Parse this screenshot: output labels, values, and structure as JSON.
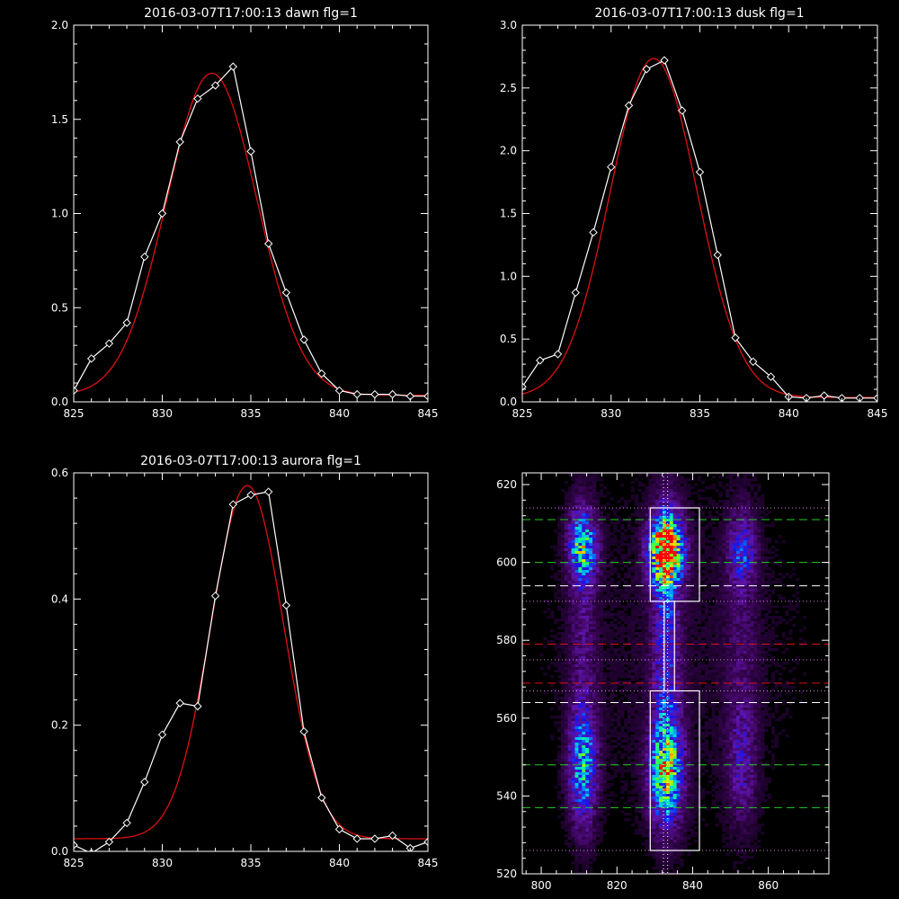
{
  "chart_data": [
    {
      "type": "line",
      "title": "2016-03-07T17:00:13 dawn flg=1",
      "xlim": [
        825,
        845
      ],
      "ylim": [
        0,
        2.0
      ],
      "xticks": [
        825,
        830,
        835,
        840,
        845
      ],
      "xtick_labels": [
        "825",
        "830",
        "835",
        "840",
        "845"
      ],
      "yticks": [
        0,
        0.5,
        1.0,
        1.5,
        2.0
      ],
      "ytick_labels": [
        "0.0",
        "0.5",
        "1.0",
        "1.5",
        "2.0"
      ],
      "series": [
        {
          "kind": "data",
          "color": "#ffffff",
          "marker": "diamond",
          "x": [
            825,
            826,
            827,
            828,
            829,
            830,
            831,
            832,
            833,
            834,
            835,
            836,
            837,
            838,
            839,
            840,
            841,
            842,
            843,
            844,
            845
          ],
          "y": [
            0.06,
            0.23,
            0.31,
            0.42,
            0.77,
            1.0,
            1.38,
            1.61,
            1.68,
            1.78,
            1.33,
            0.84,
            0.58,
            0.33,
            0.15,
            0.06,
            0.04,
            0.04,
            0.04,
            0.03,
            0.03
          ]
        },
        {
          "kind": "fit",
          "color": "#e01010",
          "model": "gaussian",
          "amp": 1.71,
          "center": 832.8,
          "sigma": 2.55,
          "base": 0.035
        }
      ]
    },
    {
      "type": "line",
      "title": "2016-03-07T17:00:13 dusk flg=1",
      "xlim": [
        825,
        845
      ],
      "ylim": [
        0,
        3.0
      ],
      "xticks": [
        825,
        830,
        835,
        840,
        845
      ],
      "xtick_labels": [
        "825",
        "830",
        "835",
        "840",
        "845"
      ],
      "yticks": [
        0,
        0.5,
        1.0,
        1.5,
        2.0,
        2.5,
        3.0
      ],
      "ytick_labels": [
        "0.0",
        "0.5",
        "1.0",
        "1.5",
        "2.0",
        "2.5",
        "3.0"
      ],
      "series": [
        {
          "kind": "data",
          "color": "#ffffff",
          "marker": "diamond",
          "x": [
            825,
            826,
            827,
            828,
            829,
            830,
            831,
            832,
            833,
            834,
            835,
            836,
            837,
            838,
            839,
            840,
            841,
            842,
            843,
            844,
            845
          ],
          "y": [
            0.12,
            0.33,
            0.38,
            0.87,
            1.35,
            1.87,
            2.36,
            2.65,
            2.72,
            2.32,
            1.83,
            1.17,
            0.51,
            0.32,
            0.2,
            0.04,
            0.03,
            0.05,
            0.03,
            0.03,
            0.03
          ]
        },
        {
          "kind": "fit",
          "color": "#e01010",
          "model": "gaussian",
          "amp": 2.7,
          "center": 832.4,
          "sigma": 2.45,
          "base": 0.035
        }
      ]
    },
    {
      "type": "line",
      "title": "2016-03-07T17:00:13 aurora flg=1",
      "xlim": [
        825,
        845
      ],
      "ylim": [
        0,
        0.6
      ],
      "xticks": [
        825,
        830,
        835,
        840,
        845
      ],
      "xtick_labels": [
        "825",
        "830",
        "835",
        "840",
        "845"
      ],
      "yticks": [
        0,
        0.2,
        0.4,
        0.6
      ],
      "ytick_labels": [
        "0.0",
        "0.2",
        "0.4",
        "0.6"
      ],
      "series": [
        {
          "kind": "data",
          "color": "#ffffff",
          "marker": "diamond",
          "x": [
            825,
            826,
            827,
            828,
            829,
            830,
            831,
            832,
            833,
            834,
            835,
            836,
            837,
            838,
            839,
            840,
            841,
            842,
            843,
            844,
            845
          ],
          "y": [
            0.01,
            -0.003,
            0.015,
            0.045,
            0.11,
            0.185,
            0.235,
            0.23,
            0.405,
            0.55,
            0.565,
            0.57,
            0.39,
            0.19,
            0.085,
            0.035,
            0.02,
            0.02,
            0.025,
            0.005,
            0.015
          ]
        },
        {
          "kind": "fit",
          "color": "#e01010",
          "model": "gaussian",
          "amp": 0.56,
          "center": 834.8,
          "sigma": 2.05,
          "base": 0.02
        }
      ]
    },
    {
      "type": "heatmap",
      "title": "",
      "xlim": [
        795,
        876
      ],
      "ylim": [
        520,
        623
      ],
      "xticks": [
        800,
        820,
        840,
        860
      ],
      "xtick_labels": [
        "800",
        "820",
        "840",
        "860"
      ],
      "yticks": [
        520,
        540,
        560,
        580,
        600,
        620
      ],
      "ytick_labels": [
        "520",
        "540",
        "560",
        "580",
        "600",
        "620"
      ],
      "colormap": "rainbow",
      "blobs": [
        {
          "x": 811,
          "y": 604,
          "sx": 2.5,
          "sy": 6,
          "amp": 0.55
        },
        {
          "x": 811,
          "y": 547,
          "sx": 2.5,
          "sy": 10,
          "amp": 0.45
        },
        {
          "x": 811,
          "y": 580,
          "sx": 2.5,
          "sy": 25,
          "amp": 0.14
        },
        {
          "x": 833,
          "y": 603,
          "sx": 3,
          "sy": 6,
          "amp": 1.0
        },
        {
          "x": 833,
          "y": 546,
          "sx": 3,
          "sy": 9,
          "amp": 0.62
        },
        {
          "x": 833,
          "y": 578,
          "sx": 2.5,
          "sy": 24,
          "amp": 0.3
        },
        {
          "x": 853,
          "y": 603,
          "sx": 2.5,
          "sy": 6,
          "amp": 0.28
        },
        {
          "x": 853,
          "y": 548,
          "sx": 2.5,
          "sy": 10,
          "amp": 0.18
        },
        {
          "x": 853,
          "y": 578,
          "sx": 3,
          "sy": 26,
          "amp": 0.1
        },
        {
          "x": 835,
          "y": 578,
          "sx": 30,
          "sy": 40,
          "amp": 0.05
        }
      ],
      "boxes": [
        {
          "color": "#ffffff",
          "x": [
            828.8,
            841.8
          ],
          "y": [
            590,
            614
          ]
        },
        {
          "color": "#ffffff",
          "x": [
            828.8,
            841.8
          ],
          "y": [
            526,
            567
          ]
        },
        {
          "color": "#ffffff",
          "x": [
            832.5,
            835.2
          ],
          "y": [
            567,
            590
          ]
        }
      ],
      "hlines": [
        {
          "y": 611,
          "style": "dashed",
          "color": "#22cc22"
        },
        {
          "y": 600,
          "style": "dashed",
          "color": "#22cc22"
        },
        {
          "y": 548,
          "style": "dashed",
          "color": "#22cc22"
        },
        {
          "y": 537,
          "style": "dashed",
          "color": "#22cc22"
        },
        {
          "y": 594,
          "style": "dashed",
          "color": "#ffffff"
        },
        {
          "y": 564,
          "style": "dashed",
          "color": "#ffffff"
        },
        {
          "y": 579,
          "style": "dashed",
          "color": "#dd1111"
        },
        {
          "y": 569,
          "style": "dashed",
          "color": "#dd1111"
        },
        {
          "y": 614,
          "style": "dotted",
          "color": "#cc88cc"
        },
        {
          "y": 590,
          "style": "dotted",
          "color": "#cc88cc"
        },
        {
          "y": 575,
          "style": "dotted",
          "color": "#cc88cc"
        },
        {
          "y": 567,
          "style": "dotted",
          "color": "#cc88cc"
        },
        {
          "y": 526,
          "style": "dotted",
          "color": "#cc88cc"
        }
      ],
      "vlines": [
        {
          "x": 832.3,
          "style": "dotted",
          "color": "#ffffff"
        },
        {
          "x": 833.4,
          "style": "dotted",
          "color": "#ffffff"
        }
      ]
    }
  ]
}
